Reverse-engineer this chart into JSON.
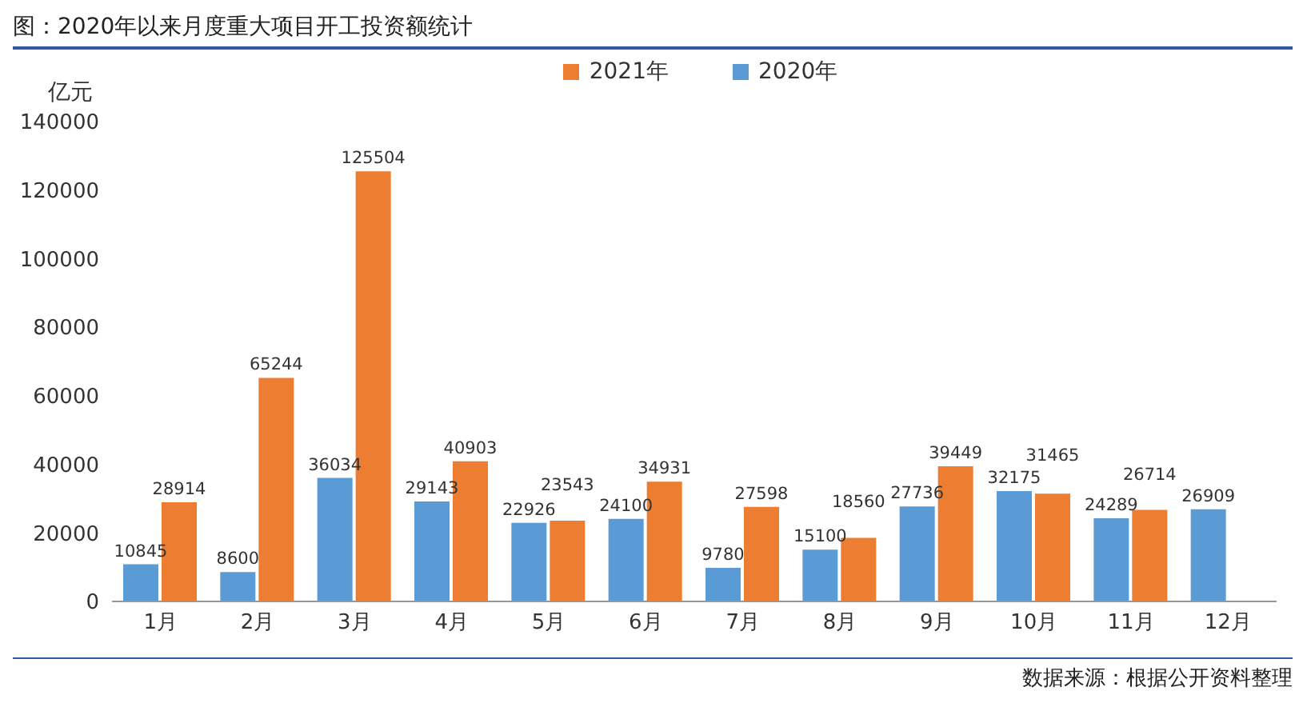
{
  "chart_data": {
    "type": "bar",
    "title": "图：2020年以来月度重大项目开工投资额统计",
    "ylabel": "亿元",
    "categories": [
      "1月",
      "2月",
      "3月",
      "4月",
      "5月",
      "6月",
      "7月",
      "8月",
      "9月",
      "10月",
      "11月",
      "12月"
    ],
    "series": [
      {
        "name": "2020年",
        "color": "#5b9bd5",
        "values": [
          10845,
          8600,
          36034,
          29143,
          22926,
          24100,
          9780,
          15100,
          27736,
          32175,
          24289,
          26909
        ]
      },
      {
        "name": "2021年",
        "color": "#ed7d31",
        "values": [
          28914,
          65244,
          125504,
          40903,
          23543,
          34931,
          27598,
          18560,
          39449,
          31465,
          26714,
          null
        ]
      }
    ],
    "ylim": [
      0,
      140000
    ],
    "yticks": [
      0,
      20000,
      40000,
      60000,
      80000,
      100000,
      120000,
      140000
    ],
    "grid": false,
    "legend": "top",
    "data_labels": true,
    "annotations": [
      "数据来源：根据公开资料整理"
    ]
  }
}
